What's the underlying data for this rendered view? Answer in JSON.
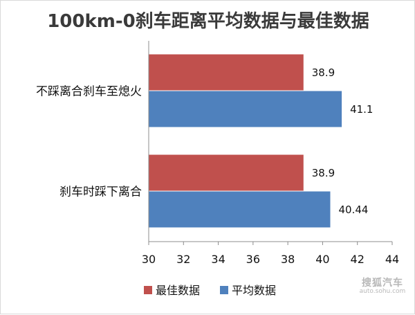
{
  "chart_data": {
    "type": "bar",
    "orientation": "horizontal",
    "title": "100km-0刹车距离平均数据与最佳数据",
    "categories": [
      "不踩离合刹车至熄火",
      "刹车时踩下离合"
    ],
    "series": [
      {
        "name": "最佳数据",
        "color": "#c0504d",
        "values": [
          38.9,
          38.9
        ],
        "labels": [
          "38.9",
          "38.9"
        ]
      },
      {
        "name": "平均数据",
        "color": "#4f81bd",
        "values": [
          41.1,
          40.44
        ],
        "labels": [
          "41.1",
          "40.44"
        ]
      }
    ],
    "xlim": [
      30,
      44
    ],
    "xticks": [
      "30",
      "32",
      "34",
      "36",
      "38",
      "40",
      "42",
      "44"
    ],
    "grid": false,
    "legend": "bottom"
  },
  "watermark": {
    "text": "搜狐汽车",
    "sub": "auto.sohu.com"
  }
}
